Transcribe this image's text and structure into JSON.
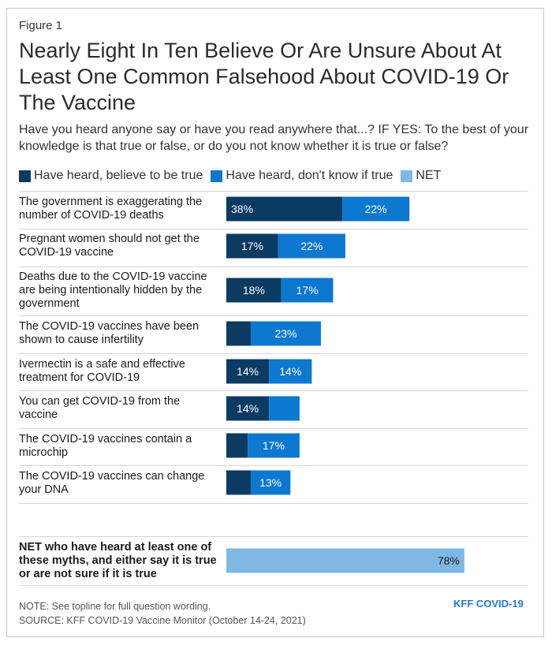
{
  "figure_label": "Figure 1",
  "title": "Nearly Eight In Ten Believe Or Are Unsure About At Least One Common Falsehood About COVID-19 Or The Vaccine",
  "subtitle": "Have you heard anyone say or have you read anywhere that...? IF YES: To the best of your knowledge is that true or false, or do you not know whether it is true or false?",
  "note": "NOTE: See topline for full question wording.",
  "source": "SOURCE: KFF COVID-19 Vaccine Monitor (October 14-24, 2021)",
  "brand": "KFF COVID-19",
  "colors": {
    "believe": "#0b3a63",
    "dont_know": "#0c78d0",
    "net": "#7fb8e4"
  },
  "chart_data": {
    "type": "bar",
    "orientation": "horizontal",
    "stacked": true,
    "legend": [
      {
        "name": "Have heard, believe to be true",
        "color": "#0b3a63"
      },
      {
        "name": "Have heard, don't know if true",
        "color": "#0c78d0"
      },
      {
        "name": "NET",
        "color": "#7fb8e4"
      }
    ],
    "categories": [
      "The government is exaggerating the number of COVID-19 deaths",
      "Pregnant women should not get the COVID-19 vaccine",
      "Deaths due to the COVID-19 vaccine are being intentionally hidden by the government",
      "The COVID-19 vaccines have been shown to cause infertility",
      "Ivermectin is a safe and effective treatment for COVID-19",
      "You can get COVID-19 from the vaccine",
      "The COVID-19 vaccines contain a microchip",
      "The COVID-19 vaccines can change your DNA"
    ],
    "series": [
      {
        "name": "Have heard, believe to be true",
        "values": [
          38,
          17,
          18,
          8,
          14,
          14,
          7,
          8
        ],
        "labels": [
          "38%",
          "17%",
          "18%",
          "",
          "14%",
          "14%",
          "",
          ""
        ]
      },
      {
        "name": "Have heard, don't know if true",
        "values": [
          22,
          22,
          17,
          23,
          14,
          10,
          17,
          13
        ],
        "labels": [
          "22%",
          "22%",
          "17%",
          "23%",
          "14%",
          "",
          "17%",
          "13%"
        ]
      }
    ],
    "net": {
      "label": "NET who have heard at least one of these myths, and either say it is true or are not sure if it is true",
      "value": 78,
      "value_label": "78%"
    },
    "xlim": [
      0,
      100
    ]
  }
}
